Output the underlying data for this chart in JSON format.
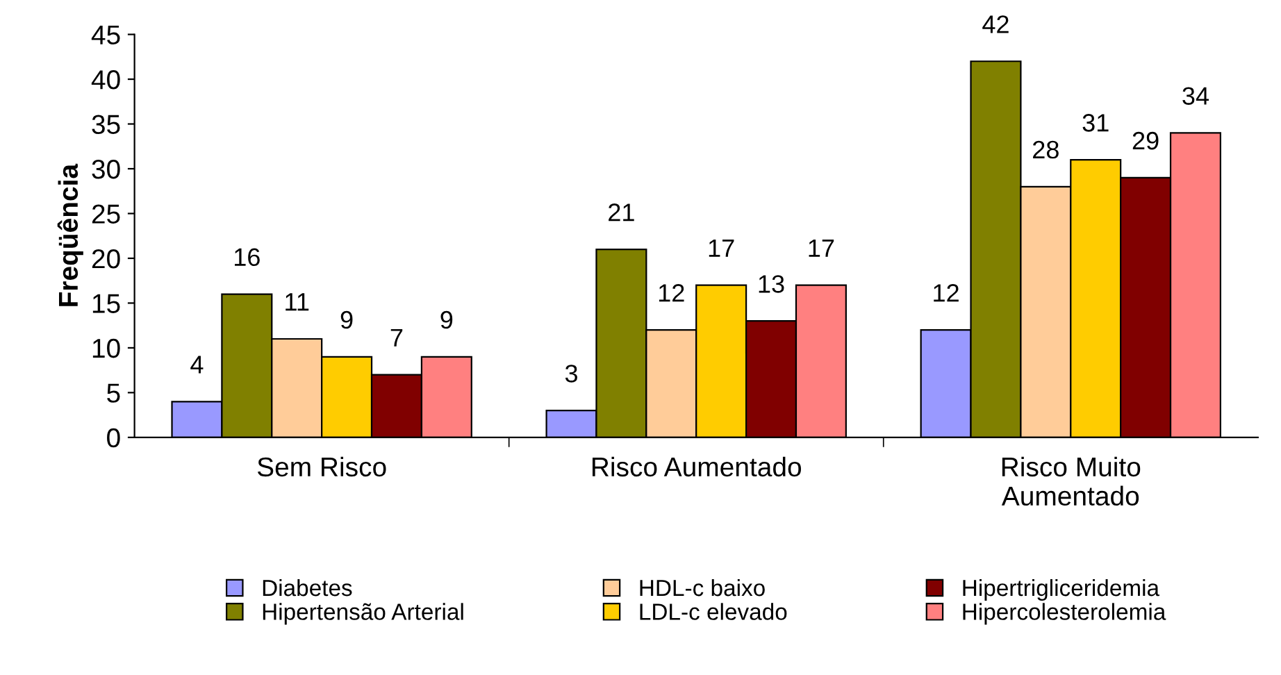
{
  "chart_data": {
    "type": "bar",
    "ylabel": "Freqüência",
    "categories": [
      "Sem Risco",
      "Risco Aumentado",
      "Risco Muito\nAumentado"
    ],
    "series": [
      {
        "name": "Diabetes",
        "color": "#9999ff",
        "values": [
          4,
          3,
          12
        ]
      },
      {
        "name": "Hipertensão Arterial",
        "color": "#808000",
        "values": [
          16,
          21,
          42
        ]
      },
      {
        "name": "HDL-c baixo",
        "color": "#ffcc99",
        "values": [
          11,
          12,
          28
        ]
      },
      {
        "name": "LDL-c elevado",
        "color": "#ffcc00",
        "values": [
          9,
          17,
          31
        ]
      },
      {
        "name": "Hipertrigliceridemia",
        "color": "#800000",
        "values": [
          7,
          13,
          29
        ]
      },
      {
        "name": "Hipercolesterolemia",
        "color": "#ff8080",
        "values": [
          9,
          17,
          34
        ]
      }
    ],
    "ylim": [
      0,
      45
    ],
    "yticks": [
      0,
      5,
      10,
      15,
      20,
      25,
      30,
      35,
      40,
      45
    ],
    "data_labels": true,
    "legend": "bottom",
    "grid": false
  }
}
